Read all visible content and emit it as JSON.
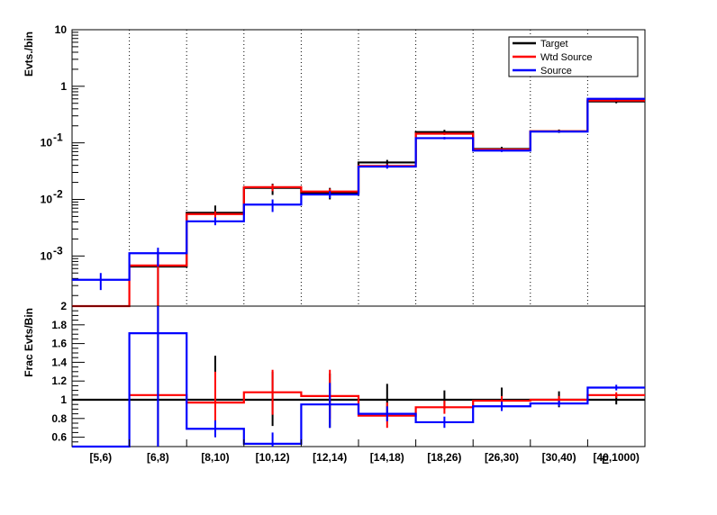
{
  "chart_data": [
    {
      "panel": "top",
      "type": "step",
      "ylabel": "Evts./bin",
      "yscale": "log",
      "ylim": [
        0.00013,
        10
      ],
      "yticks": [
        {
          "value": 10,
          "label": "10"
        },
        {
          "value": 1,
          "label": "1"
        },
        {
          "value": 0.1,
          "label": "10",
          "exp": "-1"
        },
        {
          "value": 0.01,
          "label": "10",
          "exp": "-2"
        },
        {
          "value": 0.001,
          "label": "10",
          "exp": "-3"
        }
      ],
      "grid_x": true,
      "legend_position": "top-right",
      "categories": [
        "[5,6)",
        "[6,8)",
        "[8,10)",
        "[10,12)",
        "[12,14)",
        "[14,18)",
        "[18,26)",
        "[26,30)",
        "[30,40)",
        "[40,1000)"
      ],
      "series": [
        {
          "name": "Target",
          "color": "#000000",
          "values": [
            null,
            0.00065,
            0.0058,
            0.016,
            0.013,
            0.045,
            0.155,
            0.078,
            0.16,
            0.54
          ],
          "err_low": [
            null,
            2e-05,
            0.0044,
            0.012,
            0.01,
            0.04,
            0.142,
            0.072,
            0.15,
            0.5
          ],
          "err_high": [
            null,
            0.0012,
            0.0078,
            0.019,
            0.016,
            0.05,
            0.17,
            0.085,
            0.172,
            0.58
          ]
        },
        {
          "name": "Wtd Source",
          "color": "#ff0000",
          "values": [
            8e-05,
            0.00068,
            0.0055,
            0.0165,
            0.0138,
            0.039,
            0.145,
            0.076,
            0.16,
            0.56
          ],
          "err_low": [
            null,
            2e-05,
            0.0048,
            0.014,
            0.012,
            0.036,
            0.138,
            0.072,
            0.155,
            0.54
          ],
          "err_high": [
            null,
            0.0012,
            0.0062,
            0.0185,
            0.0155,
            0.042,
            0.152,
            0.08,
            0.166,
            0.58
          ]
        },
        {
          "name": "Source",
          "color": "#0000ff",
          "values": [
            0.00038,
            0.00112,
            0.0041,
            0.0081,
            0.0122,
            0.038,
            0.121,
            0.073,
            0.158,
            0.6
          ],
          "err_low": [
            0.00025,
            0.00065,
            0.0035,
            0.006,
            0.0105,
            0.035,
            0.115,
            0.069,
            0.153,
            0.58
          ],
          "err_high": [
            0.0005,
            0.0014,
            0.0048,
            0.01,
            0.014,
            0.041,
            0.127,
            0.077,
            0.163,
            0.62
          ]
        }
      ]
    },
    {
      "panel": "bottom",
      "type": "step",
      "ylabel": "Frac Evts/Bin",
      "xlabel": "E",
      "yscale": "linear",
      "ylim": [
        0.5,
        2
      ],
      "yticks": [
        {
          "value": 0.6,
          "label": "0.6"
        },
        {
          "value": 0.8,
          "label": "0.8"
        },
        {
          "value": 1.0,
          "label": "1"
        },
        {
          "value": 1.2,
          "label": "1.2"
        },
        {
          "value": 1.4,
          "label": "1.4"
        },
        {
          "value": 1.6,
          "label": "1.6"
        },
        {
          "value": 1.8,
          "label": "1.8"
        },
        {
          "value": 2.0,
          "label": "2"
        }
      ],
      "grid_x": false,
      "categories": [
        "[5,6)",
        "[6,8)",
        "[8,10)",
        "[10,12)",
        "[12,14)",
        "[14,18)",
        "[18,26)",
        "[26,30)",
        "[30,40)",
        "[40,1000)"
      ],
      "series": [
        {
          "name": "Target",
          "color": "#000000",
          "values": [
            1,
            1,
            1,
            1,
            1,
            1,
            1,
            1,
            1,
            1
          ],
          "err_low": [
            null,
            0.5,
            0.6,
            0.72,
            0.7,
            0.85,
            0.9,
            0.9,
            0.92,
            0.95
          ],
          "err_high": [
            null,
            2,
            1.47,
            1.3,
            1.28,
            1.17,
            1.1,
            1.13,
            1.09,
            1.05
          ]
        },
        {
          "name": "Wtd Source",
          "color": "#ff0000",
          "values": [
            null,
            1.05,
            0.97,
            1.08,
            1.04,
            0.83,
            0.92,
            0.99,
            1.0,
            1.05
          ],
          "err_low": [
            null,
            null,
            0.7,
            0.84,
            0.8,
            0.7,
            0.85,
            0.94,
            0.96,
            1.02
          ],
          "err_high": [
            null,
            null,
            1.3,
            1.32,
            1.32,
            0.97,
            0.99,
            1.04,
            1.04,
            1.08
          ]
        },
        {
          "name": "Source",
          "color": "#0000ff",
          "values": [
            0.5,
            1.71,
            0.69,
            0.53,
            0.95,
            0.85,
            0.76,
            0.93,
            0.96,
            1.13
          ],
          "err_low": [
            null,
            0.5,
            0.6,
            0.5,
            0.7,
            0.77,
            0.7,
            0.88,
            0.93,
            1.1
          ],
          "err_high": [
            null,
            2,
            0.78,
            0.65,
            1.18,
            0.93,
            0.82,
            0.98,
            0.99,
            1.16
          ]
        }
      ]
    }
  ]
}
